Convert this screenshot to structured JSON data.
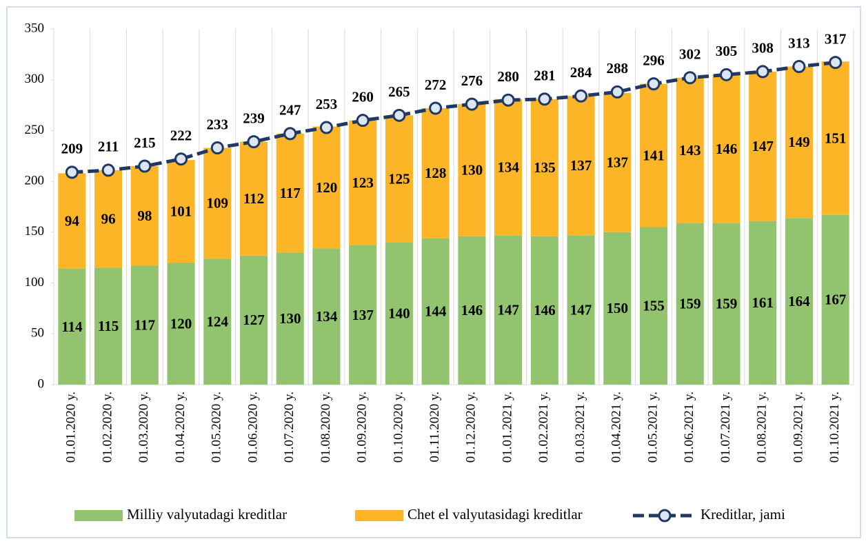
{
  "chart_data": {
    "type": "bar",
    "stacked": true,
    "categories": [
      "01.01.2020 y.",
      "01.02.2020 y.",
      "01.03.2020 y.",
      "01.04.2020 y.",
      "01.05.2020 y.",
      "01.06.2020 y.",
      "01.07.2020 y.",
      "01.08.2020 y.",
      "01.09.2020 y.",
      "01.10.2020 y.",
      "01.11.2020 y.",
      "01.12.2020 y.",
      "01.01.2021 y.",
      "01.02.2021 y.",
      "01.03.2021 y.",
      "01.04.2021 y.",
      "01.05.2021 y.",
      "01.06.2021 y.",
      "01.07.2021 y.",
      "01.08.2021 y.",
      "01.09.2021 y.",
      "01.10.2021 y."
    ],
    "series": [
      {
        "name": "Milliy valyutadagi kreditlar",
        "color": "#92c36e",
        "type": "bar",
        "values": [
          114,
          115,
          117,
          120,
          124,
          127,
          130,
          134,
          137,
          140,
          144,
          146,
          147,
          146,
          147,
          150,
          155,
          159,
          159,
          161,
          164,
          167
        ]
      },
      {
        "name": "Chet el valyutasidagi kreditlar",
        "color": "#fbb527",
        "type": "bar",
        "values": [
          94,
          96,
          98,
          101,
          109,
          112,
          117,
          120,
          123,
          125,
          128,
          130,
          134,
          135,
          137,
          137,
          141,
          143,
          146,
          147,
          149,
          151
        ]
      },
      {
        "name": "Kreditlar, jami",
        "color": "#1f3864",
        "type": "line",
        "values": [
          209,
          211,
          215,
          222,
          233,
          239,
          247,
          253,
          260,
          265,
          272,
          276,
          280,
          281,
          284,
          288,
          296,
          302,
          305,
          308,
          313,
          317
        ]
      }
    ],
    "ylim": [
      0,
      350
    ],
    "yticks": [
      0,
      50,
      100,
      150,
      200,
      250,
      300,
      350
    ],
    "legend": "bottom"
  }
}
